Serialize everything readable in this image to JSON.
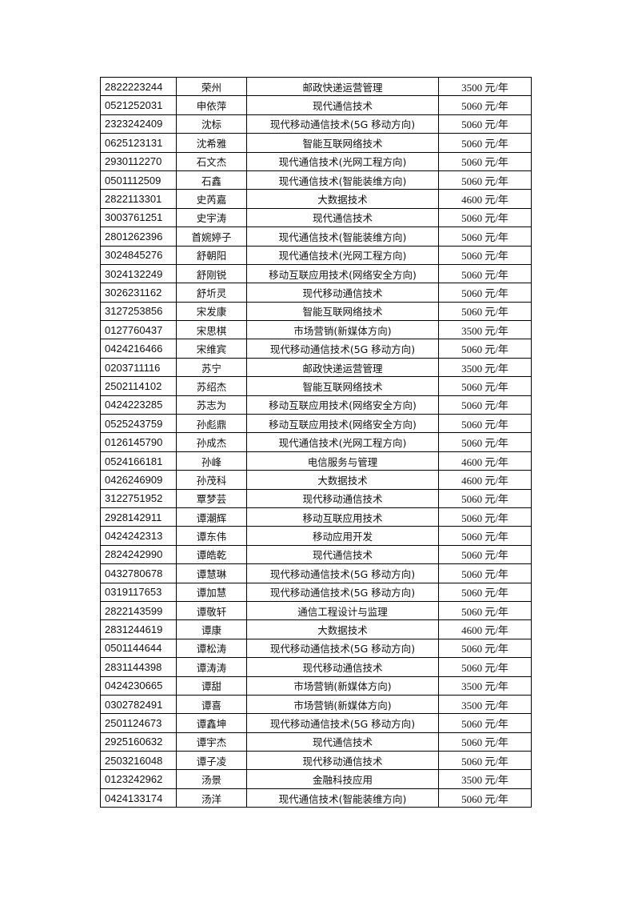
{
  "rows": [
    {
      "id": "2822223244",
      "name": "荣州",
      "major": "邮政快递运营管理",
      "fee": "3500 元/年"
    },
    {
      "id": "0521252031",
      "name": "申依萍",
      "major": "现代通信技术",
      "fee": "5060 元/年"
    },
    {
      "id": "2323242409",
      "name": "沈标",
      "major": "现代移动通信技术(5G 移动方向)",
      "fee": "5060 元/年"
    },
    {
      "id": "0625123131",
      "name": "沈希雅",
      "major": "智能互联网络技术",
      "fee": "5060 元/年"
    },
    {
      "id": "2930112270",
      "name": "石文杰",
      "major": "现代通信技术(光网工程方向)",
      "fee": "5060 元/年"
    },
    {
      "id": "0501112509",
      "name": "石鑫",
      "major": "现代通信技术(智能装维方向)",
      "fee": "5060 元/年"
    },
    {
      "id": "2822113301",
      "name": "史芮嘉",
      "major": "大数据技术",
      "fee": "4600 元/年"
    },
    {
      "id": "3003761251",
      "name": "史宇涛",
      "major": "现代通信技术",
      "fee": "5060 元/年"
    },
    {
      "id": "2801262396",
      "name": "首婉婷子",
      "major": "现代通信技术(智能装维方向)",
      "fee": "5060 元/年"
    },
    {
      "id": "3024845276",
      "name": "舒朝阳",
      "major": "现代通信技术(光网工程方向)",
      "fee": "5060 元/年"
    },
    {
      "id": "3024132249",
      "name": "舒刚锐",
      "major": "移动互联应用技术(网络安全方向)",
      "fee": "5060 元/年"
    },
    {
      "id": "3026231162",
      "name": "舒圻灵",
      "major": "现代移动通信技术",
      "fee": "5060 元/年"
    },
    {
      "id": "3127253856",
      "name": "宋发康",
      "major": "智能互联网络技术",
      "fee": "5060 元/年"
    },
    {
      "id": "0127760437",
      "name": "宋思棋",
      "major": "市场营销(新媒体方向)",
      "fee": "3500 元/年"
    },
    {
      "id": "0424216466",
      "name": "宋维宾",
      "major": "现代移动通信技术(5G 移动方向)",
      "fee": "5060 元/年"
    },
    {
      "id": "0203711116",
      "name": "苏宁",
      "major": "邮政快递运营管理",
      "fee": "3500 元/年"
    },
    {
      "id": "2502114102",
      "name": "苏绍杰",
      "major": "智能互联网络技术",
      "fee": "5060 元/年"
    },
    {
      "id": "0424223285",
      "name": "苏志为",
      "major": "移动互联应用技术(网络安全方向)",
      "fee": "5060 元/年"
    },
    {
      "id": "0525243759",
      "name": "孙彪鼎",
      "major": "移动互联应用技术(网络安全方向)",
      "fee": "5060 元/年"
    },
    {
      "id": "0126145790",
      "name": "孙成杰",
      "major": "现代通信技术(光网工程方向)",
      "fee": "5060 元/年"
    },
    {
      "id": "0524166181",
      "name": "孙峰",
      "major": "电信服务与管理",
      "fee": "4600 元/年"
    },
    {
      "id": "0426246909",
      "name": "孙茂科",
      "major": "大数据技术",
      "fee": "4600 元/年"
    },
    {
      "id": "3122751952",
      "name": "覃梦芸",
      "major": "现代移动通信技术",
      "fee": "5060 元/年"
    },
    {
      "id": "2928142911",
      "name": "谭潮辉",
      "major": "移动互联应用技术",
      "fee": "5060 元/年"
    },
    {
      "id": "0424242313",
      "name": "谭东伟",
      "major": "移动应用开发",
      "fee": "5060 元/年"
    },
    {
      "id": "2824242990",
      "name": "谭皓乾",
      "major": "现代通信技术",
      "fee": "5060 元/年"
    },
    {
      "id": "0432780678",
      "name": "谭慧琳",
      "major": "现代移动通信技术(5G 移动方向)",
      "fee": "5060 元/年"
    },
    {
      "id": "0319117653",
      "name": "谭加慧",
      "major": "现代移动通信技术(5G 移动方向)",
      "fee": "5060 元/年"
    },
    {
      "id": "2822143599",
      "name": "谭敬轩",
      "major": "通信工程设计与监理",
      "fee": "5060 元/年"
    },
    {
      "id": "2831244619",
      "name": "谭康",
      "major": "大数据技术",
      "fee": "4600 元/年"
    },
    {
      "id": "0501144644",
      "name": "谭松涛",
      "major": "现代移动通信技术(5G 移动方向)",
      "fee": "5060 元/年"
    },
    {
      "id": "2831144398",
      "name": "谭涛涛",
      "major": "现代移动通信技术",
      "fee": "5060 元/年"
    },
    {
      "id": "0424230665",
      "name": "谭甜",
      "major": "市场营销(新媒体方向)",
      "fee": "3500 元/年"
    },
    {
      "id": "0302782491",
      "name": "谭喜",
      "major": "市场营销(新媒体方向)",
      "fee": "3500 元/年"
    },
    {
      "id": "2501124673",
      "name": "谭鑫坤",
      "major": "现代移动通信技术(5G 移动方向)",
      "fee": "5060 元/年"
    },
    {
      "id": "2925160632",
      "name": "谭宇杰",
      "major": "现代通信技术",
      "fee": "5060 元/年"
    },
    {
      "id": "2503216048",
      "name": "谭子凌",
      "major": "现代移动通信技术",
      "fee": "5060 元/年"
    },
    {
      "id": "0123242962",
      "name": "汤景",
      "major": "金融科技应用",
      "fee": "3500 元/年"
    },
    {
      "id": "0424133174",
      "name": "汤洋",
      "major": "现代通信技术(智能装维方向)",
      "fee": "5060 元/年"
    }
  ]
}
